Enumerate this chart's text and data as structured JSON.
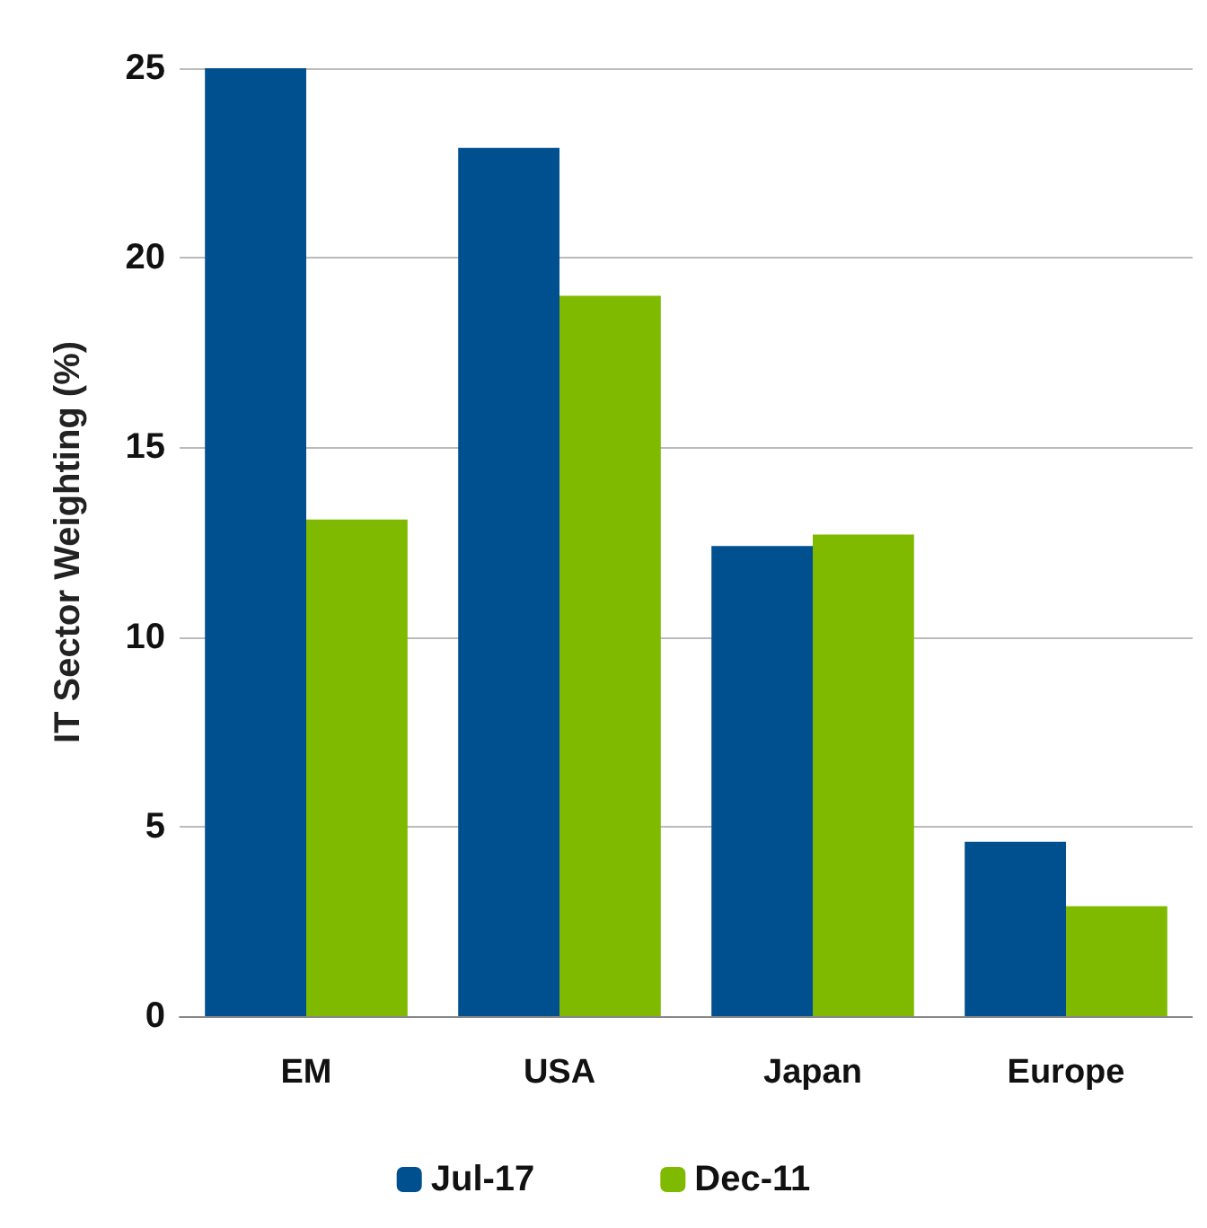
{
  "chart_data": {
    "type": "bar",
    "ylabel": "IT Sector Weighting (%)",
    "categories": [
      "EM",
      "USA",
      "Japan",
      "Europe"
    ],
    "series": [
      {
        "name": "Jul-17",
        "color": "#00508f",
        "values": [
          25,
          22.9,
          12.4,
          4.6
        ]
      },
      {
        "name": "Dec-11",
        "color": "#7fba00",
        "values": [
          13.1,
          19.0,
          12.7,
          2.9
        ]
      }
    ],
    "ylim": [
      0,
      25
    ],
    "yticks": [
      0,
      5,
      10,
      15,
      20,
      25
    ],
    "grid": "y",
    "legend": "bottom"
  }
}
